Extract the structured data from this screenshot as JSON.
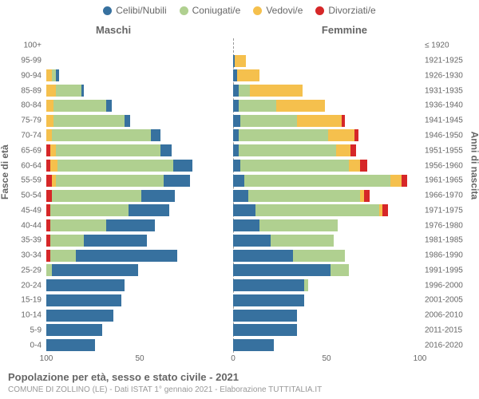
{
  "type": "population-pyramid",
  "background_color": "#ffffff",
  "legend": {
    "items": [
      {
        "label": "Celibi/Nubili",
        "color": "#37719f"
      },
      {
        "label": "Coniugati/e",
        "color": "#b0d090"
      },
      {
        "label": "Vedovi/e",
        "color": "#f5c04d"
      },
      {
        "label": "Divorziati/e",
        "color": "#d62728"
      }
    ],
    "fontsize": 12
  },
  "genders": {
    "left": "Maschi",
    "right": "Femmine",
    "fontsize": 13
  },
  "y_left_title": "Fasce di età",
  "y_right_title": "Anni di nascita",
  "title": "Popolazione per età, sesso e stato civile - 2021",
  "subtitle": "COMUNE DI ZOLLINO (LE) - Dati ISTAT 1° gennaio 2021 - Elaborazione TUTTITALIA.IT",
  "title_fontsize": 13,
  "subtitle_fontsize": 10,
  "axis_color": "#666666",
  "tick_fontsize": 10,
  "max_value": 100,
  "x_ticks": [
    100,
    50,
    0,
    50,
    100
  ],
  "categories": [
    "celibi",
    "coniugati",
    "vedovi",
    "divorziati"
  ],
  "category_colors": {
    "celibi": "#37719f",
    "coniugati": "#b0d090",
    "vedovi": "#f5c04d",
    "divorziati": "#d62728"
  },
  "bar_gap_pct": 20,
  "rows": [
    {
      "age": "100+",
      "birth": "≤ 1920",
      "m": {
        "celibi": 0,
        "coniugati": 0,
        "vedovi": 0,
        "divorziati": 0
      },
      "f": {
        "celibi": 0,
        "coniugati": 0,
        "vedovi": 0,
        "divorziati": 0
      }
    },
    {
      "age": "95-99",
      "birth": "1921-1925",
      "m": {
        "celibi": 0,
        "coniugati": 0,
        "vedovi": 0,
        "divorziati": 0
      },
      "f": {
        "celibi": 1,
        "coniugati": 0,
        "vedovi": 6,
        "divorziati": 0
      }
    },
    {
      "age": "90-94",
      "birth": "1926-1930",
      "m": {
        "celibi": 2,
        "coniugati": 2,
        "vedovi": 3,
        "divorziati": 0
      },
      "f": {
        "celibi": 2,
        "coniugati": 0,
        "vedovi": 12,
        "divorziati": 0
      }
    },
    {
      "age": "85-89",
      "birth": "1931-1935",
      "m": {
        "celibi": 1,
        "coniugati": 14,
        "vedovi": 5,
        "divorziati": 0
      },
      "f": {
        "celibi": 3,
        "coniugati": 6,
        "vedovi": 28,
        "divorziati": 0
      }
    },
    {
      "age": "80-84",
      "birth": "1936-1940",
      "m": {
        "celibi": 3,
        "coniugati": 28,
        "vedovi": 4,
        "divorziati": 0
      },
      "f": {
        "celibi": 3,
        "coniugati": 20,
        "vedovi": 26,
        "divorziati": 0
      }
    },
    {
      "age": "75-79",
      "birth": "1941-1945",
      "m": {
        "celibi": 3,
        "coniugati": 38,
        "vedovi": 4,
        "divorziati": 0
      },
      "f": {
        "celibi": 4,
        "coniugati": 30,
        "vedovi": 24,
        "divorziati": 2
      }
    },
    {
      "age": "70-74",
      "birth": "1946-1950",
      "m": {
        "celibi": 5,
        "coniugati": 53,
        "vedovi": 3,
        "divorziati": 0
      },
      "f": {
        "celibi": 3,
        "coniugati": 48,
        "vedovi": 14,
        "divorziati": 2
      }
    },
    {
      "age": "65-69",
      "birth": "1951-1955",
      "m": {
        "celibi": 6,
        "coniugati": 56,
        "vedovi": 3,
        "divorziati": 2
      },
      "f": {
        "celibi": 3,
        "coniugati": 52,
        "vedovi": 8,
        "divorziati": 3
      }
    },
    {
      "age": "60-64",
      "birth": "1956-1960",
      "m": {
        "celibi": 10,
        "coniugati": 62,
        "vedovi": 4,
        "divorziati": 2
      },
      "f": {
        "celibi": 4,
        "coniugati": 58,
        "vedovi": 6,
        "divorziati": 4
      }
    },
    {
      "age": "55-59",
      "birth": "1961-1965",
      "m": {
        "celibi": 14,
        "coniugati": 58,
        "vedovi": 2,
        "divorziati": 3
      },
      "f": {
        "celibi": 6,
        "coniugati": 78,
        "vedovi": 6,
        "divorziati": 3
      }
    },
    {
      "age": "50-54",
      "birth": "1966-1970",
      "m": {
        "celibi": 18,
        "coniugati": 48,
        "vedovi": 0,
        "divorziati": 3
      },
      "f": {
        "celibi": 8,
        "coniugati": 60,
        "vedovi": 2,
        "divorziati": 3
      }
    },
    {
      "age": "45-49",
      "birth": "1971-1975",
      "m": {
        "celibi": 22,
        "coniugati": 42,
        "vedovi": 0,
        "divorziati": 2
      },
      "f": {
        "celibi": 12,
        "coniugati": 66,
        "vedovi": 2,
        "divorziati": 3
      }
    },
    {
      "age": "40-44",
      "birth": "1976-1980",
      "m": {
        "celibi": 26,
        "coniugati": 30,
        "vedovi": 0,
        "divorziati": 2
      },
      "f": {
        "celibi": 14,
        "coniugati": 42,
        "vedovi": 0,
        "divorziati": 0
      }
    },
    {
      "age": "35-39",
      "birth": "1981-1985",
      "m": {
        "celibi": 34,
        "coniugati": 18,
        "vedovi": 0,
        "divorziati": 2
      },
      "f": {
        "celibi": 20,
        "coniugati": 34,
        "vedovi": 0,
        "divorziati": 0
      }
    },
    {
      "age": "30-34",
      "birth": "1986-1990",
      "m": {
        "celibi": 54,
        "coniugati": 14,
        "vedovi": 0,
        "divorziati": 2
      },
      "f": {
        "celibi": 32,
        "coniugati": 28,
        "vedovi": 0,
        "divorziati": 0
      }
    },
    {
      "age": "25-29",
      "birth": "1991-1995",
      "m": {
        "celibi": 46,
        "coniugati": 3,
        "vedovi": 0,
        "divorziati": 0
      },
      "f": {
        "celibi": 52,
        "coniugati": 10,
        "vedovi": 0,
        "divorziati": 0
      }
    },
    {
      "age": "20-24",
      "birth": "1996-2000",
      "m": {
        "celibi": 42,
        "coniugati": 0,
        "vedovi": 0,
        "divorziati": 0
      },
      "f": {
        "celibi": 38,
        "coniugati": 2,
        "vedovi": 0,
        "divorziati": 0
      }
    },
    {
      "age": "15-19",
      "birth": "2001-2005",
      "m": {
        "celibi": 40,
        "coniugati": 0,
        "vedovi": 0,
        "divorziati": 0
      },
      "f": {
        "celibi": 38,
        "coniugati": 0,
        "vedovi": 0,
        "divorziati": 0
      }
    },
    {
      "age": "10-14",
      "birth": "2006-2010",
      "m": {
        "celibi": 36,
        "coniugati": 0,
        "vedovi": 0,
        "divorziati": 0
      },
      "f": {
        "celibi": 34,
        "coniugati": 0,
        "vedovi": 0,
        "divorziati": 0
      }
    },
    {
      "age": "5-9",
      "birth": "2011-2015",
      "m": {
        "celibi": 30,
        "coniugati": 0,
        "vedovi": 0,
        "divorziati": 0
      },
      "f": {
        "celibi": 34,
        "coniugati": 0,
        "vedovi": 0,
        "divorziati": 0
      }
    },
    {
      "age": "0-4",
      "birth": "2016-2020",
      "m": {
        "celibi": 26,
        "coniugati": 0,
        "vedovi": 0,
        "divorziati": 0
      },
      "f": {
        "celibi": 22,
        "coniugati": 0,
        "vedovi": 0,
        "divorziati": 0
      }
    }
  ]
}
